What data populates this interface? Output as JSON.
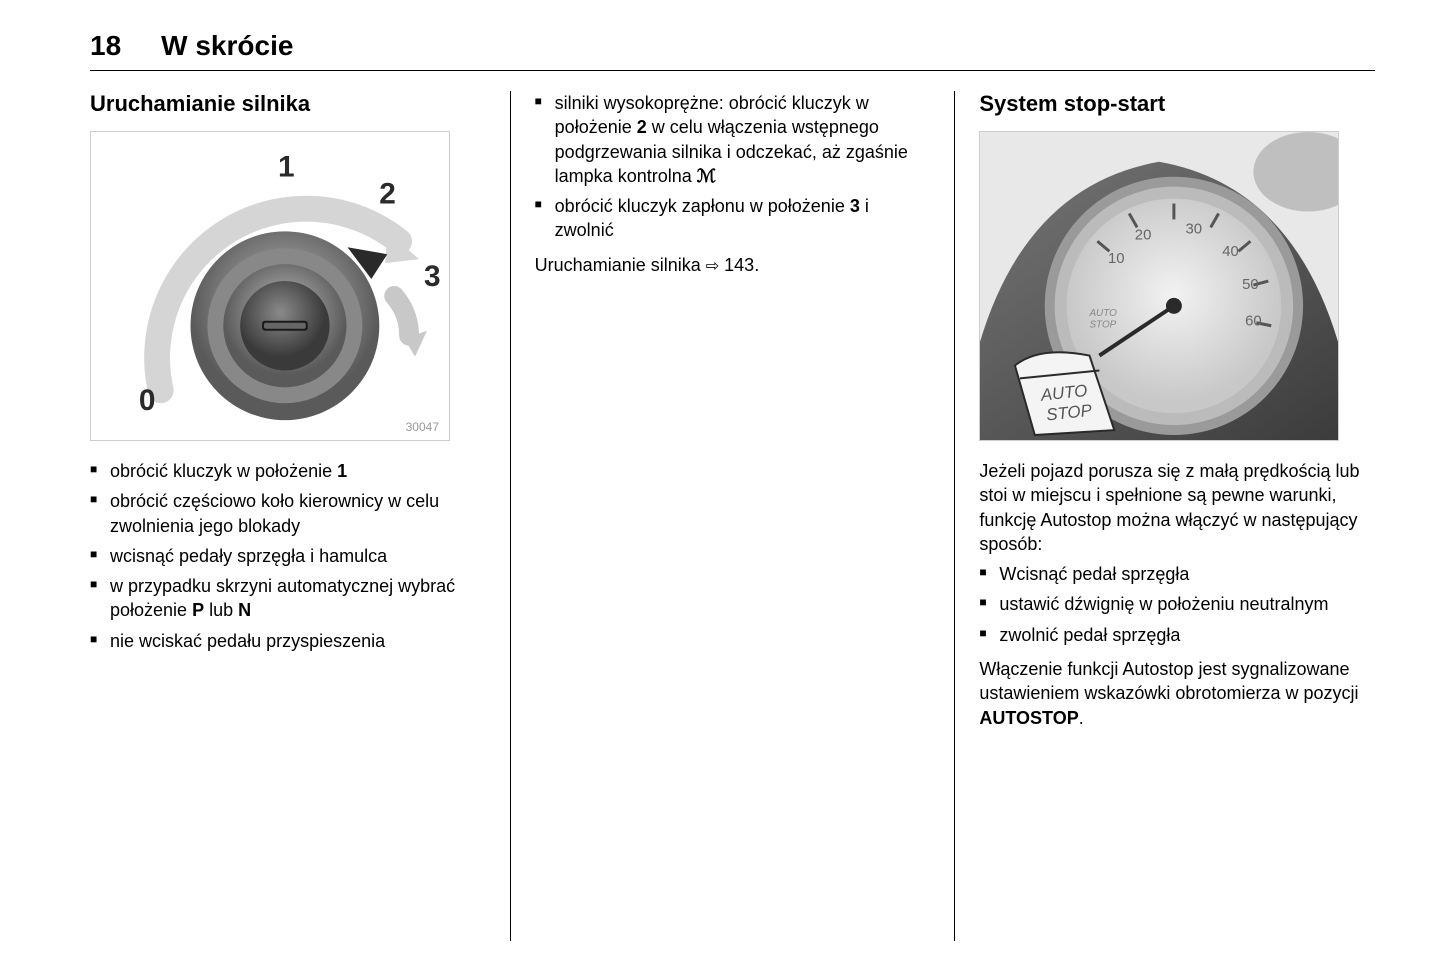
{
  "page_number": "18",
  "chapter_title": "W skrócie",
  "col1": {
    "heading": "Uruchamianie silnika",
    "figure": {
      "id": "30047",
      "positions": [
        "0",
        "1",
        "2",
        "3"
      ],
      "colors": {
        "border": "#cccccc",
        "ring_outer": "#6b6b6b",
        "ring_mid": "#a0a0a0",
        "ring_inner": "#7a7a7a",
        "center": "#555555",
        "slot": "#2a2a2a",
        "arc": "#dedede",
        "arrow_dark": "#2a2a2a",
        "label": "#2a2a2a"
      }
    },
    "bullets": [
      "obrócić kluczyk w położenie <b>1</b>",
      "obrócić częściowo koło kierownicy w celu zwolnienia jego blokady",
      "wcisnąć pedały sprzęgła i hamulca",
      "w przypadku skrzyni automatycznej wybrać położenie <b>P</b> lub <b>N</b>",
      "nie wciskać pedału przyspieszenia"
    ]
  },
  "col2": {
    "bullets": [
      "silniki wysokoprężne: obrócić kluczyk w położenie <b>2</b> w celu włączenia wstępnego podgrzewania silnika i odczekać, aż zgaśnie lampka kontrolna <span class=\"glow-icon\">ℳ</span>",
      "obrócić kluczyk zapłonu w położenie <b>3</b> i zwolnić"
    ],
    "ref_line": "Uruchamianie silnika <span class=\"ref-arrow\">⇨</span> 143."
  },
  "col3": {
    "heading": "System stop-start",
    "figure": {
      "tachometer": {
        "ticks": [
          "10",
          "20",
          "30",
          "40",
          "50",
          "60"
        ],
        "label": "AUTO\nSTOP",
        "callout": "AUTO\nSTOP"
      },
      "colors": {
        "bg": "#ededed",
        "dash": "#5a5a5a",
        "gauge_face": "#dedede",
        "gauge_rim_outer": "#aaaaaa",
        "gauge_rim_inner": "#888888",
        "tick": "#555555",
        "needle": "#2a2a2a",
        "callout_bg": "#f4f4f4",
        "callout_border": "#2a2a2a",
        "text": "#666666"
      }
    },
    "intro": "Jeżeli pojazd porusza się z małą prędkością lub stoi w miejscu i spełnione są pewne warunki, funkcję Autostop można włączyć w następujący sposób:",
    "bullets": [
      "Wcisnąć pedał sprzęgła",
      "ustawić dźwignię w położeniu neutralnym",
      "zwolnić pedał sprzęgła"
    ],
    "outro": "Włączenie funkcji Autostop jest sygnalizowane ustawieniem wskazówki obrotomierza w pozycji <b>AUTOSTOP</b>."
  }
}
